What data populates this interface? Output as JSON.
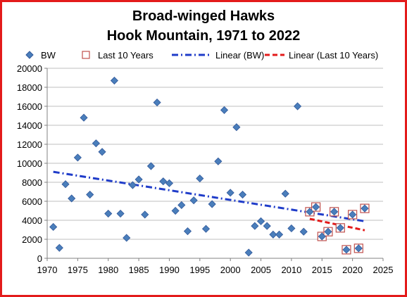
{
  "colors": {
    "frame": "#e31b1b",
    "point_fill": "#4a7ebb",
    "point_stroke": "#31589a",
    "recent_marker_stroke": "#c0504d",
    "trend_all": "#1f3cc9",
    "trend_recent": "#e31b1b",
    "grid": "#bfbfbf"
  },
  "chart_data": {
    "type": "scatter",
    "title_line1": "Broad-winged Hawks",
    "title_line2": "Hook Mountain, 1971 to 2022",
    "xlim": [
      1970,
      2025
    ],
    "ylim": [
      0,
      20000
    ],
    "x_ticks": [
      1970,
      1975,
      1980,
      1985,
      1990,
      1995,
      2000,
      2005,
      2010,
      2015,
      2020,
      2025
    ],
    "y_ticks": [
      0,
      2000,
      4000,
      6000,
      8000,
      10000,
      12000,
      14000,
      16000,
      18000,
      20000
    ],
    "grid": "horizontal",
    "legend_position": "top",
    "legend": [
      {
        "label": "BW",
        "marker": "diamond"
      },
      {
        "label": "Last 10 Years",
        "marker": "open-square"
      },
      {
        "label": "Linear (BW)",
        "marker": "dash-dot-line"
      },
      {
        "label": "Linear (Last 10 Years)",
        "marker": "dashed-line"
      }
    ],
    "series": [
      {
        "name": "BW",
        "x": [
          1971,
          1972,
          1973,
          1974,
          1975,
          1976,
          1977,
          1978,
          1979,
          1980,
          1981,
          1982,
          1983,
          1984,
          1985,
          1986,
          1987,
          1988,
          1989,
          1990,
          1991,
          1992,
          1993,
          1994,
          1995,
          1996,
          1997,
          1998,
          1999,
          2000,
          2001,
          2002,
          2003,
          2004,
          2005,
          2006,
          2007,
          2008,
          2009,
          2010,
          2011,
          2012,
          2013,
          2014,
          2015,
          2016,
          2017,
          2018,
          2019,
          2020,
          2021,
          2022
        ],
        "y": [
          3300,
          1100,
          7800,
          6300,
          10600,
          14800,
          6700,
          12100,
          11200,
          4700,
          18700,
          4700,
          2150,
          7700,
          8300,
          4600,
          9700,
          16400,
          8100,
          7900,
          5000,
          5600,
          2850,
          6100,
          8400,
          3100,
          5700,
          10200,
          15600,
          6900,
          13800,
          6700,
          600,
          3400,
          3900,
          3400,
          2500,
          2500,
          6800,
          3150,
          16000,
          2800,
          4900,
          5400,
          2300,
          2800,
          4900,
          3200,
          900,
          4600,
          1050,
          5250
        ]
      },
      {
        "name": "Last 10 Years",
        "x": [
          2013,
          2014,
          2015,
          2016,
          2017,
          2018,
          2019,
          2020,
          2021,
          2022
        ],
        "y": [
          4900,
          5400,
          2300,
          2800,
          4900,
          3200,
          900,
          4600,
          1050,
          5250
        ]
      }
    ],
    "trendlines": [
      {
        "name": "Linear (BW)",
        "x": [
          1971,
          2022
        ],
        "y": [
          9100,
          3900
        ]
      },
      {
        "name": "Linear (Last 10 Years)",
        "x": [
          2013,
          2022
        ],
        "y": [
          4150,
          2950
        ]
      }
    ]
  }
}
